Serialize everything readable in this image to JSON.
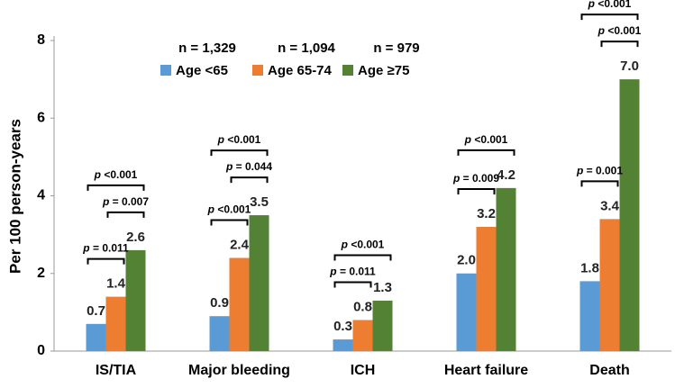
{
  "chart_data": {
    "type": "bar",
    "y_label": "Per 100 person-years",
    "categories": [
      "IS/TIA",
      "Major bleeding",
      "ICH",
      "Heart failure",
      "Death"
    ],
    "series": [
      {
        "name": "Age <65",
        "n_label": "n = 1,329",
        "color": "#5b9bd5",
        "values": [
          0.7,
          0.9,
          0.3,
          2.0,
          1.8
        ],
        "value_labels": [
          "0.7",
          "0.9",
          "0.3",
          "2.0",
          "1.8"
        ]
      },
      {
        "name": "Age 65-74",
        "n_label": "n = 1,094",
        "color": "#ed7d31",
        "values": [
          1.4,
          2.4,
          0.8,
          3.2,
          3.4
        ],
        "value_labels": [
          "1.4",
          "2.4",
          "0.8",
          "3.2",
          "3.4"
        ]
      },
      {
        "name": "Age ≥75",
        "n_label": "n = 979",
        "color": "#548235",
        "values": [
          2.6,
          3.5,
          1.3,
          4.2,
          7.0
        ],
        "value_labels": [
          "2.6",
          "3.5",
          "1.3",
          "4.2",
          "7.0"
        ]
      }
    ],
    "ylim": [
      0,
      8
    ],
    "yticks": [
      0,
      2,
      4,
      6,
      8
    ],
    "comparisons": [
      {
        "category": "IS/TIA",
        "between": [
          "Age <65",
          "Age 65-74"
        ],
        "label": "p = 0.011"
      },
      {
        "category": "IS/TIA",
        "between": [
          "Age 65-74",
          "Age ≥75"
        ],
        "label": "p = 0.007"
      },
      {
        "category": "IS/TIA",
        "between": [
          "Age <65",
          "Age ≥75"
        ],
        "label": "p <0.001"
      },
      {
        "category": "Major bleeding",
        "between": [
          "Age <65",
          "Age 65-74"
        ],
        "label": "p <0.001"
      },
      {
        "category": "Major bleeding",
        "between": [
          "Age 65-74",
          "Age ≥75"
        ],
        "label": "p = 0.044"
      },
      {
        "category": "Major bleeding",
        "between": [
          "Age <65",
          "Age ≥75"
        ],
        "label": "p <0.001"
      },
      {
        "category": "ICH",
        "between": [
          "Age <65",
          "Age 65-74"
        ],
        "label": "p = 0.011"
      },
      {
        "category": "ICH",
        "between": [
          "Age <65",
          "Age ≥75"
        ],
        "label": "p <0.001"
      },
      {
        "category": "Heart failure",
        "between": [
          "Age <65",
          "Age 65-74"
        ],
        "label": "p = 0.009"
      },
      {
        "category": "Heart failure",
        "between": [
          "Age <65",
          "Age ≥75"
        ],
        "label": "p <0.001"
      },
      {
        "category": "Death",
        "between": [
          "Age <65",
          "Age 65-74"
        ],
        "label": "p = 0.001"
      },
      {
        "category": "Death",
        "between": [
          "Age 65-74",
          "Age ≥75"
        ],
        "label": "p <0.001"
      },
      {
        "category": "Death",
        "between": [
          "Age <65",
          "Age ≥75"
        ],
        "label": "p <0.001"
      }
    ]
  }
}
